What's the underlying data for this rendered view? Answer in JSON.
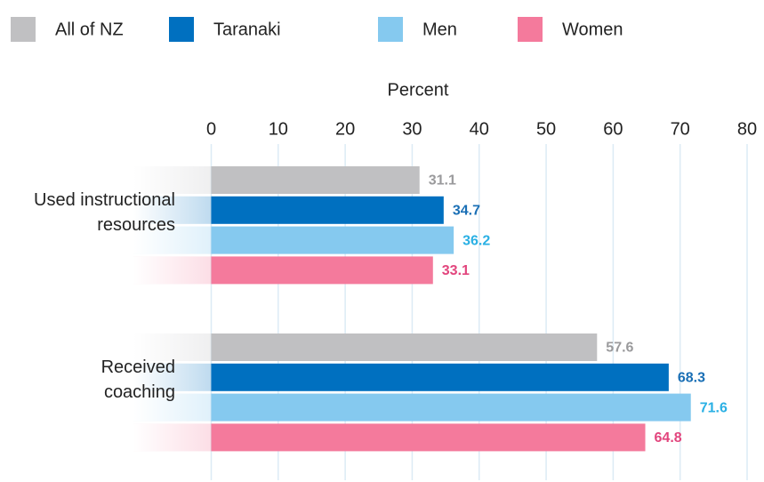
{
  "chart_data": {
    "type": "bar",
    "orientation": "horizontal",
    "x_label": "Percent",
    "categories": [
      "Used instructional\nresources",
      "Received\ncoaching"
    ],
    "series": [
      {
        "name": "All of NZ",
        "color": "#c0c0c2",
        "label_color": "#9a9a9c",
        "values": [
          31.1,
          57.6
        ]
      },
      {
        "name": "Taranaki",
        "color": "#0070c0",
        "label_color": "#1a6fb5",
        "values": [
          34.7,
          68.3
        ]
      },
      {
        "name": "Men",
        "color": "#85c9ef",
        "label_color": "#2ab0e4",
        "values": [
          36.2,
          71.6
        ]
      },
      {
        "name": "Women",
        "color": "#f47a9c",
        "label_color": "#e2457d",
        "values": [
          33.1,
          64.8
        ]
      }
    ],
    "xlim": [
      0,
      80
    ],
    "xticks": [
      0,
      10,
      20,
      30,
      40,
      50,
      60,
      70,
      80
    ],
    "grid": true
  }
}
